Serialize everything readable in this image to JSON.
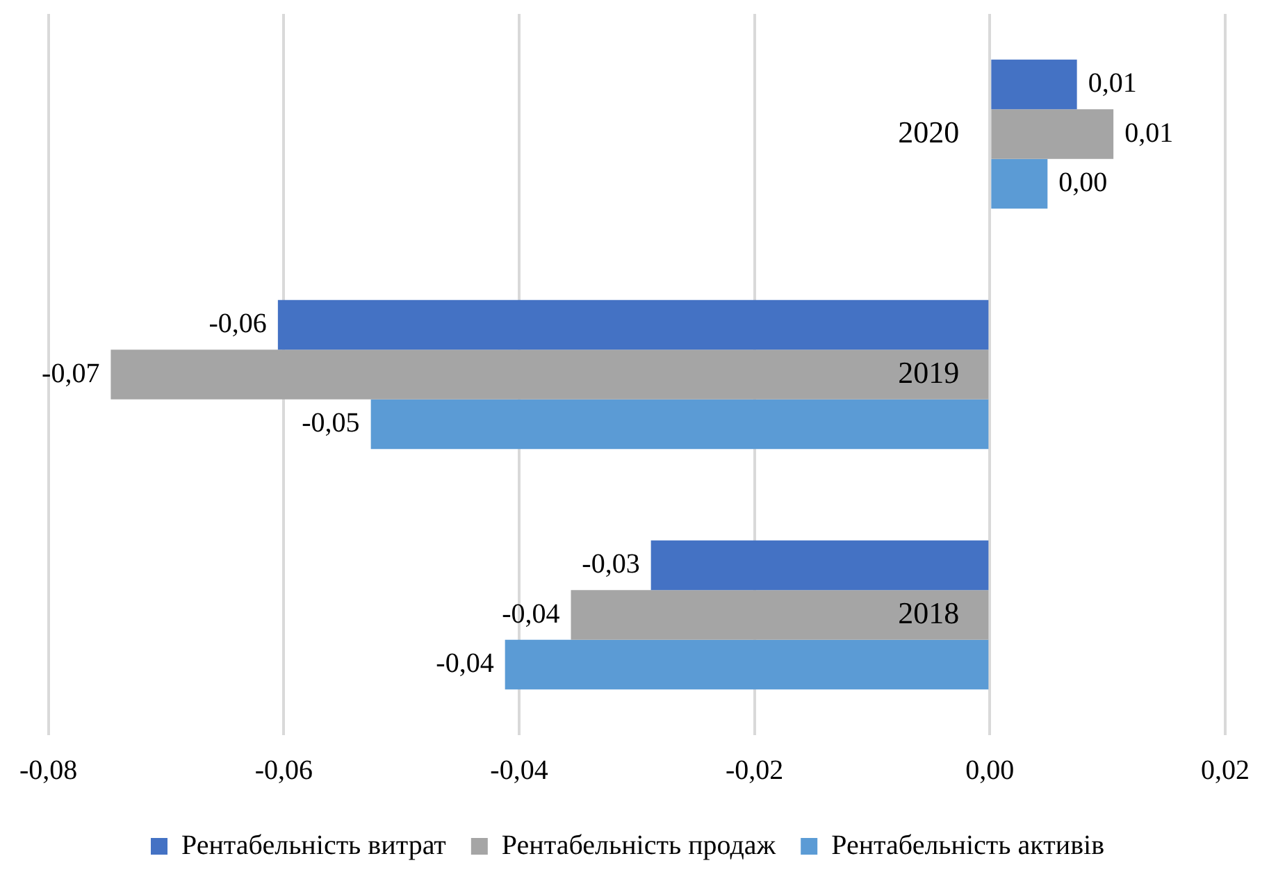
{
  "chart_data": {
    "type": "bar",
    "orientation": "horizontal",
    "categories": [
      "2020",
      "2019",
      "2018"
    ],
    "series": [
      {
        "name": "Рентабельність витрат",
        "color": "#4472c4",
        "values": [
          0.0074,
          -0.0605,
          -0.0288
        ],
        "value_labels": [
          "0,01",
          "-0,06",
          "-0,03"
        ]
      },
      {
        "name": "Рентабельність продаж",
        "color": "#a5a5a5",
        "values": [
          0.0105,
          -0.0747,
          -0.0356
        ],
        "value_labels": [
          "0,01",
          "-0,07",
          "-0,04"
        ]
      },
      {
        "name": "Рентабельність активів",
        "color": "#5b9bd5",
        "values": [
          0.0049,
          -0.0526,
          -0.0412
        ],
        "value_labels": [
          "0,00",
          "-0,05",
          "-0,04"
        ]
      }
    ],
    "xlim": [
      -0.08,
      0.02
    ],
    "xticks": [
      {
        "value": -0.08,
        "label": "-0,08"
      },
      {
        "value": -0.06,
        "label": "-0,06"
      },
      {
        "value": -0.04,
        "label": "-0,04"
      },
      {
        "value": -0.02,
        "label": "-0,02"
      },
      {
        "value": 0,
        "label": "0,00"
      },
      {
        "value": 0.02,
        "label": "0,02"
      }
    ],
    "grid": "x",
    "legend": "bottom"
  }
}
